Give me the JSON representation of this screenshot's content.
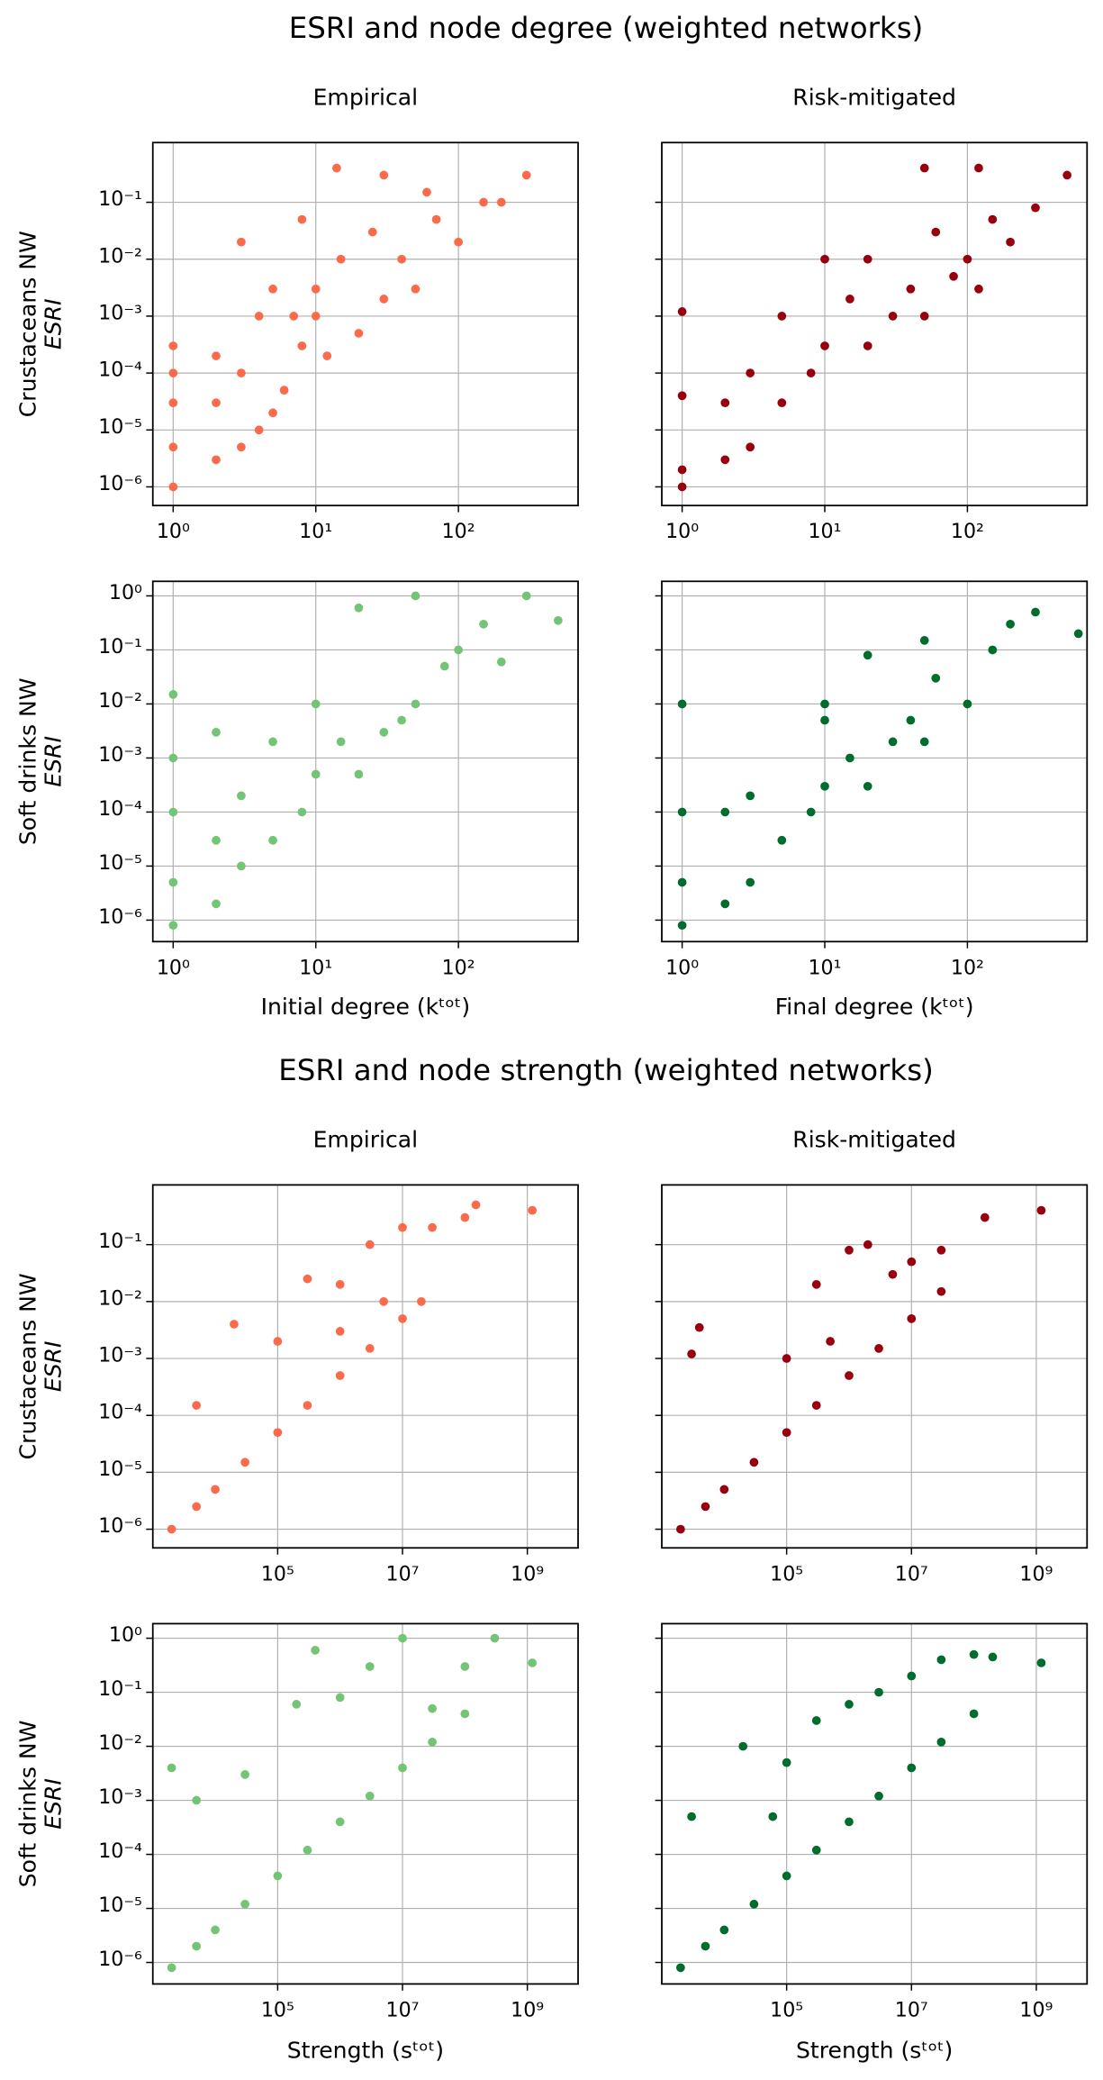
{
  "chart_data": [
    {
      "type": "scatter",
      "suptitle": "ESRI and node degree (weighted networks)",
      "title": "Empirical",
      "ylabel": [
        "Crustaceans NW",
        "ESRI"
      ],
      "color": "#fb6a4a",
      "log_x": true,
      "log_y": true,
      "grid": true,
      "xlim": [
        0.72,
        690
      ],
      "ylim": [
        4.7e-07,
        1.12
      ],
      "xticks": [
        {
          "value": 1,
          "label": "10⁰"
        },
        {
          "value": 10,
          "label": "10¹"
        },
        {
          "value": 100,
          "label": "10²"
        }
      ],
      "yticks": [
        {
          "value": 1e-06,
          "label": "10⁻⁶"
        },
        {
          "value": 1e-05,
          "label": "10⁻⁵"
        },
        {
          "value": 0.0001,
          "label": "10⁻⁴"
        },
        {
          "value": 0.001,
          "label": "10⁻³"
        },
        {
          "value": 0.01,
          "label": "10⁻²"
        },
        {
          "value": 0.1,
          "label": "10⁻¹"
        }
      ],
      "x": [
        1,
        1,
        1,
        1,
        1,
        2,
        2,
        2,
        3,
        3,
        3,
        4,
        4,
        5,
        5,
        6,
        7,
        8,
        8,
        10,
        10,
        12,
        15,
        20,
        25,
        30,
        40,
        50,
        70,
        100,
        150,
        200,
        300,
        14,
        30,
        60
      ],
      "y": [
        1e-06,
        5e-06,
        3e-05,
        0.0001,
        0.0003,
        3e-06,
        3e-05,
        0.0002,
        5e-06,
        0.0001,
        0.02,
        1e-05,
        0.001,
        2e-05,
        0.003,
        5e-05,
        0.001,
        0.0003,
        0.05,
        0.001,
        0.003,
        0.0002,
        0.01,
        0.0005,
        0.03,
        0.002,
        0.01,
        0.003,
        0.05,
        0.02,
        0.1,
        0.1,
        0.3,
        0.4,
        0.3,
        0.15
      ]
    },
    {
      "type": "scatter",
      "title": "Risk-mitigated",
      "color": "#99000d",
      "log_x": true,
      "log_y": true,
      "grid": true,
      "xlim": [
        0.72,
        690
      ],
      "ylim": [
        4.7e-07,
        1.12
      ],
      "xticks": [
        {
          "value": 1,
          "label": "10⁰"
        },
        {
          "value": 10,
          "label": "10¹"
        },
        {
          "value": 100,
          "label": "10²"
        }
      ],
      "yticks": [
        1e-06,
        1e-05,
        0.0001,
        0.001,
        0.01,
        0.1
      ],
      "x": [
        1,
        1,
        1,
        1,
        2,
        2,
        3,
        3,
        5,
        5,
        8,
        10,
        15,
        20,
        20,
        30,
        40,
        50,
        60,
        80,
        100,
        120,
        150,
        200,
        300,
        500,
        50,
        120,
        10
      ],
      "y": [
        1e-06,
        2e-06,
        4e-05,
        0.0012,
        3e-06,
        3e-05,
        5e-06,
        0.0001,
        3e-05,
        0.001,
        0.0001,
        0.0003,
        0.002,
        0.0003,
        0.01,
        0.001,
        0.003,
        0.001,
        0.03,
        0.005,
        0.01,
        0.003,
        0.05,
        0.02,
        0.08,
        0.3,
        0.4,
        0.4,
        0.01
      ]
    },
    {
      "type": "scatter",
      "ylabel": [
        "Soft drinks NW",
        "ESRI"
      ],
      "xlabel": "Initial degree (kᵗᵒᵗ)",
      "color": "#74c476",
      "log_x": true,
      "log_y": true,
      "grid": true,
      "xlim": [
        0.72,
        690
      ],
      "ylim": [
        4e-07,
        1.86
      ],
      "xticks": [
        {
          "value": 1,
          "label": "10⁰"
        },
        {
          "value": 10,
          "label": "10¹"
        },
        {
          "value": 100,
          "label": "10²"
        }
      ],
      "yticks": [
        {
          "value": 1e-06,
          "label": "10⁻⁶"
        },
        {
          "value": 1e-05,
          "label": "10⁻⁵"
        },
        {
          "value": 0.0001,
          "label": "10⁻⁴"
        },
        {
          "value": 0.001,
          "label": "10⁻³"
        },
        {
          "value": 0.01,
          "label": "10⁻²"
        },
        {
          "value": 0.1,
          "label": "10⁻¹"
        },
        {
          "value": 1,
          "label": "10⁰"
        }
      ],
      "x": [
        1,
        1,
        1,
        1,
        1,
        2,
        2,
        2,
        3,
        3,
        5,
        5,
        8,
        10,
        10,
        15,
        20,
        20,
        30,
        50,
        50,
        80,
        100,
        150,
        300,
        500,
        40,
        200
      ],
      "y": [
        8e-07,
        5e-06,
        0.0001,
        0.001,
        0.015,
        2e-06,
        3e-05,
        0.003,
        1e-05,
        0.0002,
        3e-05,
        0.002,
        0.0001,
        0.0005,
        0.01,
        0.002,
        0.0005,
        0.6,
        0.003,
        0.01,
        1,
        0.05,
        0.1,
        0.3,
        1,
        0.35,
        0.005,
        0.06
      ]
    },
    {
      "type": "scatter",
      "xlabel": "Final degree (kᵗᵒᵗ)",
      "color": "#006d2c",
      "log_x": true,
      "log_y": true,
      "grid": true,
      "xlim": [
        0.72,
        690
      ],
      "ylim": [
        4e-07,
        1.86
      ],
      "xticks": [
        {
          "value": 1,
          "label": "10⁰"
        },
        {
          "value": 10,
          "label": "10¹"
        },
        {
          "value": 100,
          "label": "10²"
        }
      ],
      "yticks": [
        1e-06,
        1e-05,
        0.0001,
        0.001,
        0.01,
        0.1,
        1
      ],
      "x": [
        1,
        1,
        1,
        1,
        2,
        2,
        3,
        3,
        5,
        8,
        10,
        10,
        15,
        20,
        20,
        30,
        40,
        50,
        60,
        100,
        150,
        200,
        300,
        600,
        10,
        50
      ],
      "y": [
        8e-07,
        5e-06,
        0.0001,
        0.01,
        2e-06,
        0.0001,
        5e-06,
        0.0002,
        3e-05,
        0.0001,
        0.0003,
        0.01,
        0.001,
        0.0003,
        0.08,
        0.002,
        0.005,
        0.002,
        0.03,
        0.01,
        0.1,
        0.3,
        0.5,
        0.2,
        0.005,
        0.15
      ]
    },
    {
      "type": "scatter",
      "suptitle": "ESRI and node strength (weighted networks)",
      "title": "Empirical",
      "ylabel": [
        "Crustaceans NW",
        "ESRI"
      ],
      "color": "#fb6a4a",
      "log_x": true,
      "log_y": true,
      "grid": true,
      "xlim": [
        1000,
        6500000000.0
      ],
      "ylim": [
        4.7e-07,
        1.12
      ],
      "xticks": [
        {
          "value": 100000.0,
          "label": "10⁵"
        },
        {
          "value": 10000000.0,
          "label": "10⁷"
        },
        {
          "value": 1000000000.0,
          "label": "10⁹"
        }
      ],
      "yticks": [
        {
          "value": 1e-06,
          "label": "10⁻⁶"
        },
        {
          "value": 1e-05,
          "label": "10⁻⁵"
        },
        {
          "value": 0.0001,
          "label": "10⁻⁴"
        },
        {
          "value": 0.001,
          "label": "10⁻³"
        },
        {
          "value": 0.01,
          "label": "10⁻²"
        },
        {
          "value": 0.1,
          "label": "10⁻¹"
        }
      ],
      "x": [
        2000.0,
        5000.0,
        10000.0,
        30000.0,
        100000.0,
        300000.0,
        1000000.0,
        3000000.0,
        10000000.0,
        20000000.0,
        5000.0,
        20000.0,
        100000.0,
        300000.0,
        1000000.0,
        3000000.0,
        10000000.0,
        30000000.0,
        100000000.0,
        150000000.0,
        1200000000.0,
        1000000.0,
        5000000.0
      ],
      "y": [
        1e-06,
        2.5e-06,
        5e-06,
        1.5e-05,
        5e-05,
        0.00015,
        0.0005,
        0.0015,
        0.005,
        0.01,
        0.00015,
        0.004,
        0.002,
        0.025,
        0.02,
        0.1,
        0.2,
        0.2,
        0.3,
        0.5,
        0.4,
        0.003,
        0.01
      ]
    },
    {
      "type": "scatter",
      "title": "Risk-mitigated",
      "color": "#99000d",
      "log_x": true,
      "log_y": true,
      "grid": true,
      "xlim": [
        1000,
        6500000000.0
      ],
      "ylim": [
        4.7e-07,
        1.12
      ],
      "xticks": [
        {
          "value": 100000.0,
          "label": "10⁵"
        },
        {
          "value": 10000000.0,
          "label": "10⁷"
        },
        {
          "value": 1000000000.0,
          "label": "10⁹"
        }
      ],
      "yticks": [
        1e-06,
        1e-05,
        0.0001,
        0.001,
        0.01,
        0.1
      ],
      "x": [
        2000.0,
        5000.0,
        10000.0,
        30000.0,
        100000.0,
        300000.0,
        1000000.0,
        3000000.0,
        10000000.0,
        30000000.0,
        3000.0,
        4000.0,
        100000.0,
        300000.0,
        1000000.0,
        2000000.0,
        5000000.0,
        10000000.0,
        30000000.0,
        150000000.0,
        1200000000.0,
        500000.0
      ],
      "y": [
        1e-06,
        2.5e-06,
        5e-06,
        1.5e-05,
        5e-05,
        0.00015,
        0.0005,
        0.0015,
        0.005,
        0.015,
        0.0012,
        0.0035,
        0.001,
        0.02,
        0.08,
        0.1,
        0.03,
        0.05,
        0.08,
        0.3,
        0.4,
        0.002
      ]
    },
    {
      "type": "scatter",
      "ylabel": [
        "Soft drinks NW",
        "ESRI"
      ],
      "xlabel": "Strength (sᵗᵒᵗ)",
      "color": "#74c476",
      "log_x": true,
      "log_y": true,
      "grid": true,
      "xlim": [
        1000,
        6500000000.0
      ],
      "ylim": [
        4e-07,
        1.86
      ],
      "xticks": [
        {
          "value": 100000.0,
          "label": "10⁵"
        },
        {
          "value": 10000000.0,
          "label": "10⁷"
        },
        {
          "value": 1000000000.0,
          "label": "10⁹"
        }
      ],
      "yticks": [
        {
          "value": 1e-06,
          "label": "10⁻⁶"
        },
        {
          "value": 1e-05,
          "label": "10⁻⁵"
        },
        {
          "value": 0.0001,
          "label": "10⁻⁴"
        },
        {
          "value": 0.001,
          "label": "10⁻³"
        },
        {
          "value": 0.01,
          "label": "10⁻²"
        },
        {
          "value": 0.1,
          "label": "10⁻¹"
        },
        {
          "value": 1,
          "label": "10⁰"
        }
      ],
      "x": [
        2000.0,
        5000.0,
        10000.0,
        30000.0,
        100000.0,
        300000.0,
        1000000.0,
        3000000.0,
        10000000.0,
        30000000.0,
        100000000.0,
        2000.0,
        5000.0,
        30000.0,
        200000.0,
        1000000.0,
        3000000.0,
        10000000.0,
        30000000.0,
        100000000.0,
        300000000.0,
        1200000000.0,
        400000.0
      ],
      "y": [
        8e-07,
        2e-06,
        4e-06,
        1.2e-05,
        4e-05,
        0.00012,
        0.0004,
        0.0012,
        0.004,
        0.012,
        0.04,
        0.004,
        0.001,
        0.003,
        0.06,
        0.08,
        0.3,
        1,
        0.05,
        0.3,
        1,
        0.35,
        0.6
      ]
    },
    {
      "type": "scatter",
      "xlabel": "Strength (sᵗᵒᵗ)",
      "color": "#006d2c",
      "log_x": true,
      "log_y": true,
      "grid": true,
      "xlim": [
        1000,
        6500000000.0
      ],
      "ylim": [
        4e-07,
        1.86
      ],
      "xticks": [
        {
          "value": 100000.0,
          "label": "10⁵"
        },
        {
          "value": 10000000.0,
          "label": "10⁷"
        },
        {
          "value": 1000000000.0,
          "label": "10⁹"
        }
      ],
      "yticks": [
        1e-06,
        1e-05,
        0.0001,
        0.001,
        0.01,
        0.1,
        1
      ],
      "x": [
        2000.0,
        5000.0,
        10000.0,
        30000.0,
        100000.0,
        300000.0,
        1000000.0,
        3000000.0,
        10000000.0,
        30000000.0,
        100000000.0,
        3000.0,
        20000.0,
        100000.0,
        300000.0,
        1000000.0,
        3000000.0,
        10000000.0,
        30000000.0,
        100000000.0,
        200000000.0,
        1200000000.0,
        60000.0
      ],
      "y": [
        8e-07,
        2e-06,
        4e-06,
        1.2e-05,
        4e-05,
        0.00012,
        0.0004,
        0.0012,
        0.004,
        0.012,
        0.04,
        0.0005,
        0.01,
        0.005,
        0.03,
        0.06,
        0.1,
        0.2,
        0.4,
        0.5,
        0.45,
        0.35,
        0.0005
      ]
    }
  ]
}
